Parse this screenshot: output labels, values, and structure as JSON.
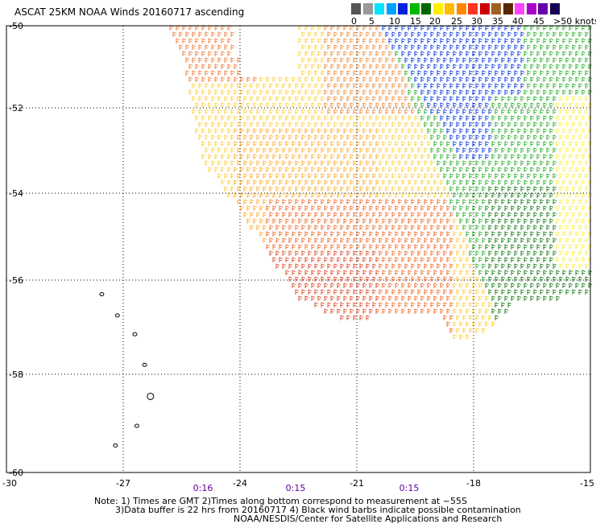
{
  "title": "ASCAT 25KM NOAA Winds 20160717 ascending",
  "legend": {
    "colors": [
      "#555555",
      "#999999",
      "#00e5ff",
      "#00a0ff",
      "#0022dd",
      "#00b800",
      "#006600",
      "#ffee00",
      "#ffbb00",
      "#ff8800",
      "#ff3322",
      "#cc0000",
      "#a06020",
      "#5a2800",
      "#ff44ff",
      "#aa00cc",
      "#6600aa",
      "#1a0055"
    ],
    "labels": [
      "0",
      "5",
      "10",
      "15",
      "20",
      "25",
      "30",
      "35",
      "40",
      "45",
      ">50 knots"
    ]
  },
  "map": {
    "lon_range": [
      -30,
      -15
    ],
    "lat_range": [
      -60,
      -50
    ],
    "lon_ticks": [
      "-30",
      "-27",
      "-24",
      "-21",
      "-18",
      "-15"
    ],
    "lat_ticks": [
      "-50",
      "-52",
      "-54",
      "-56",
      "-58",
      "-60"
    ],
    "times": [
      "0:16",
      "0:15",
      "0:15"
    ],
    "islands": [
      {
        "name": "",
        "lon": -27.55,
        "lat": -56.3
      },
      {
        "name": "",
        "lon": -27.15,
        "lat": -56.75
      },
      {
        "name": "",
        "lon": -26.7,
        "lat": -57.15
      },
      {
        "name": "",
        "lon": -26.45,
        "lat": -57.8
      },
      {
        "name": "",
        "lon": -26.3,
        "lat": -58.45
      },
      {
        "name": "",
        "lon": -26.65,
        "lat": -59.05
      },
      {
        "name": "",
        "lon": -27.2,
        "lat": -59.45
      }
    ]
  },
  "notes": {
    "line1": "Note: 1) Times are GMT 2)Times along bottom correspond to measurement at ~55S",
    "line2": "3)Data buffer is 22 hrs from 20160717 4) Black wind barbs indicate possible contamination",
    "line3": "NOAA/NESDIS/Center for Satellite Applications and Research"
  }
}
